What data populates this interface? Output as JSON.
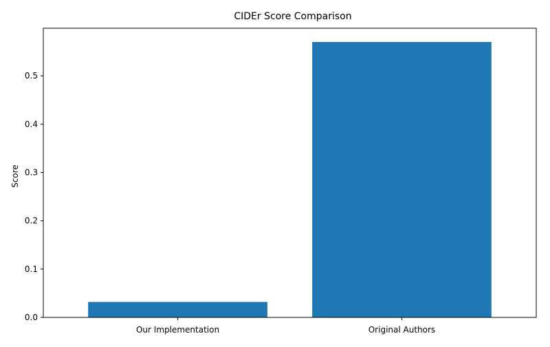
{
  "chart_data": {
    "type": "bar",
    "title": "CIDEr Score Comparison",
    "xlabel": "",
    "ylabel": "Score",
    "categories": [
      "Our Implementation",
      "Original Authors"
    ],
    "values": [
      0.032,
      0.57
    ],
    "ylim": [
      0,
      0.5985
    ],
    "yticks": [
      "0.0",
      "0.1",
      "0.2",
      "0.3",
      "0.4",
      "0.5"
    ],
    "bar_color": "#1f77b4",
    "grid": false
  }
}
